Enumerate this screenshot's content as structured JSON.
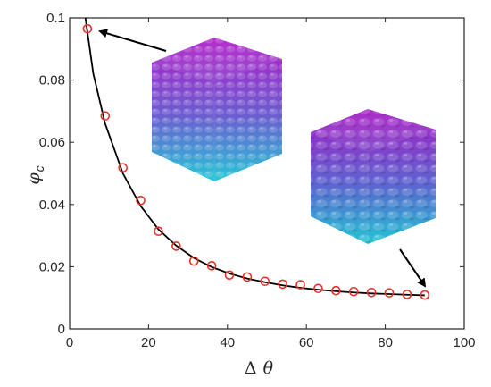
{
  "chart_data": {
    "type": "scatter",
    "xlabel_symbol": "Δ",
    "xlabel_var": "θ",
    "ylabel_var": "φ",
    "ylabel_sub": "c",
    "xlim": [
      0,
      100
    ],
    "ylim": [
      0,
      0.1
    ],
    "xticks": [
      "0",
      "20",
      "40",
      "60",
      "80",
      "100"
    ],
    "yticks": [
      "0",
      "0.02",
      "0.04",
      "0.06",
      "0.08",
      "0.1"
    ],
    "grid": false,
    "series": [
      {
        "kind": "markers",
        "marker": "open-circle",
        "color": "#e8312a",
        "points": [
          {
            "x": 4.5,
            "y": 0.0965
          },
          {
            "x": 9.0,
            "y": 0.0685
          },
          {
            "x": 13.5,
            "y": 0.0518
          },
          {
            "x": 18.0,
            "y": 0.0413
          },
          {
            "x": 22.5,
            "y": 0.0314
          },
          {
            "x": 27.0,
            "y": 0.0266
          },
          {
            "x": 31.5,
            "y": 0.0218
          },
          {
            "x": 36.0,
            "y": 0.0203
          },
          {
            "x": 40.5,
            "y": 0.0173
          },
          {
            "x": 45.0,
            "y": 0.0167
          },
          {
            "x": 49.5,
            "y": 0.0153
          },
          {
            "x": 54.0,
            "y": 0.0144
          },
          {
            "x": 58.5,
            "y": 0.0142
          },
          {
            "x": 63.0,
            "y": 0.013
          },
          {
            "x": 67.5,
            "y": 0.0123
          },
          {
            "x": 72.0,
            "y": 0.012
          },
          {
            "x": 76.5,
            "y": 0.0117
          },
          {
            "x": 81.0,
            "y": 0.0116
          },
          {
            "x": 85.5,
            "y": 0.0111
          },
          {
            "x": 90.0,
            "y": 0.0109
          }
        ]
      },
      {
        "kind": "line",
        "color": "#000000",
        "points": [
          {
            "x": 4.0,
            "y": 0.1
          },
          {
            "x": 6.0,
            "y": 0.082
          },
          {
            "x": 9.0,
            "y": 0.066
          },
          {
            "x": 13.5,
            "y": 0.05
          },
          {
            "x": 18.0,
            "y": 0.0395
          },
          {
            "x": 22.5,
            "y": 0.032
          },
          {
            "x": 27.0,
            "y": 0.0268
          },
          {
            "x": 31.5,
            "y": 0.0228
          },
          {
            "x": 36.0,
            "y": 0.0199
          },
          {
            "x": 40.5,
            "y": 0.0178
          },
          {
            "x": 45.0,
            "y": 0.0162
          },
          {
            "x": 49.5,
            "y": 0.015
          },
          {
            "x": 54.0,
            "y": 0.014
          },
          {
            "x": 58.5,
            "y": 0.0132
          },
          {
            "x": 63.0,
            "y": 0.0126
          },
          {
            "x": 67.5,
            "y": 0.0121
          },
          {
            "x": 72.0,
            "y": 0.0117
          },
          {
            "x": 76.5,
            "y": 0.0114
          },
          {
            "x": 81.0,
            "y": 0.0112
          },
          {
            "x": 85.5,
            "y": 0.011
          },
          {
            "x": 90.0,
            "y": 0.0108
          }
        ]
      }
    ],
    "insets": [
      {
        "name": "large-particle-cluster",
        "colors": [
          "#b01dc8",
          "#6a5fd0",
          "#25c8d6"
        ]
      },
      {
        "name": "small-particle-cluster",
        "colors": [
          "#a81cc4",
          "#5d63cf",
          "#22c4d3"
        ]
      }
    ]
  }
}
